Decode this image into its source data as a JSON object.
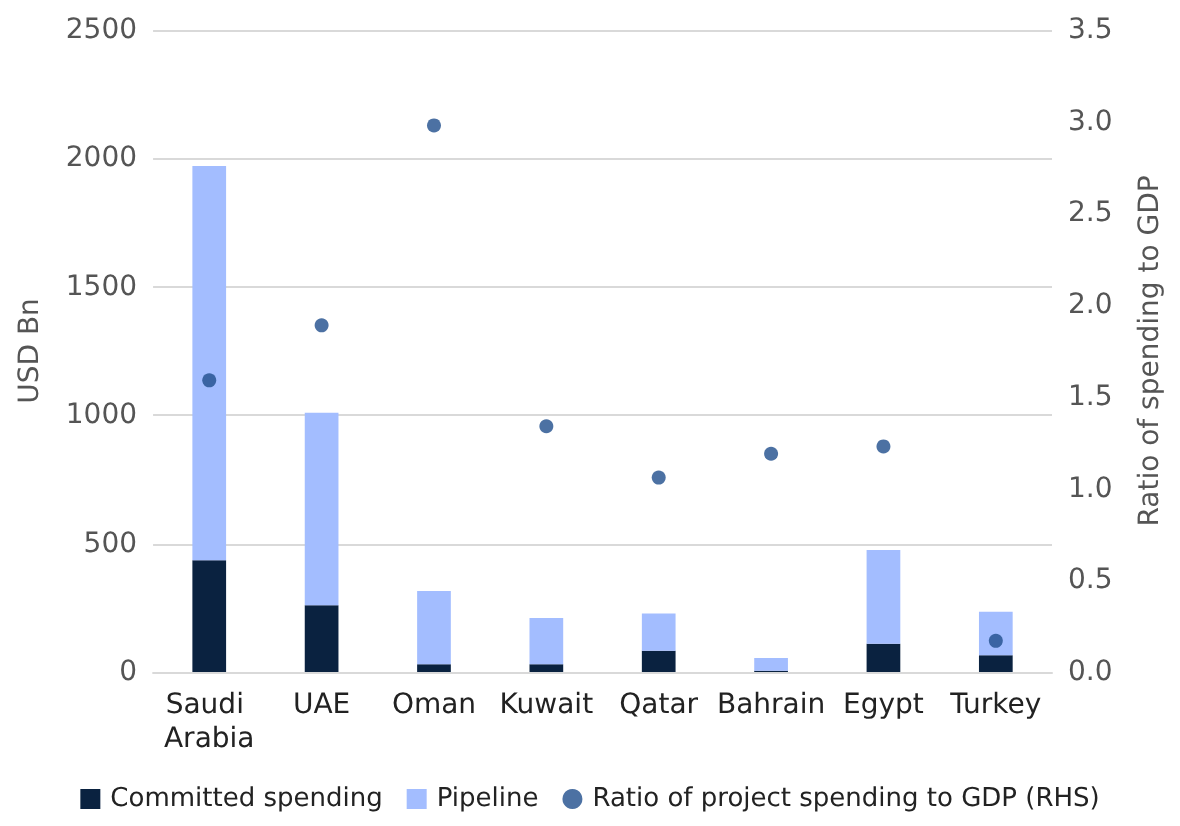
{
  "chart_data": {
    "type": "bar",
    "stacked": true,
    "ylabel": "USD Bn",
    "y2label": "Ratio of spending to GDP",
    "categories": [
      "Saudi Arabia",
      "UAE",
      "Oman",
      "Kuwait",
      "Qatar",
      "Bahrain",
      "Egypt",
      "Turkey"
    ],
    "series": [
      {
        "name": "Committed spending",
        "color": "#0a2240",
        "values": [
          435,
          260,
          30,
          30,
          83,
          5,
          110,
          65
        ]
      },
      {
        "name": "Pipeline",
        "color": "#a3bdff",
        "values": [
          1535,
          750,
          285,
          180,
          145,
          50,
          365,
          170
        ]
      },
      {
        "name": "Ratio of project spending to GDP (RHS)",
        "type": "scatter",
        "axis": "y2",
        "marker": "circle",
        "color": "#1f4e8c",
        "values": [
          1.59,
          1.89,
          2.98,
          1.34,
          1.06,
          1.19,
          1.23,
          0.17
        ]
      }
    ],
    "ylim": [
      0,
      2500
    ],
    "yticks": [
      0,
      500,
      1000,
      1500,
      2000,
      2500
    ],
    "y2lim": [
      0,
      3.5
    ],
    "y2ticks": [
      {
        "value": 0,
        "label": "0.0"
      },
      {
        "value": 0.5,
        "label": "0.5"
      },
      {
        "value": 1,
        "label": "1.0"
      },
      {
        "value": 1.5,
        "label": "1.5"
      },
      {
        "value": 2,
        "label": "2.0"
      },
      {
        "value": 2.5,
        "label": "2.5"
      },
      {
        "value": 3,
        "label": "3.0"
      },
      {
        "value": 3.5,
        "label": "3.5"
      }
    ],
    "grid": "y",
    "legend": "bottom"
  }
}
